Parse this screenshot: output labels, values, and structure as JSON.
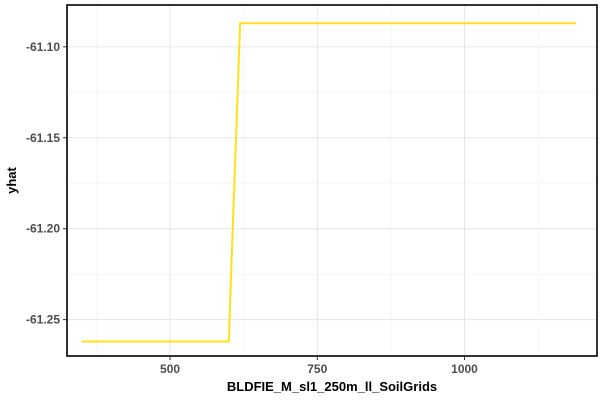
{
  "chart_data": {
    "type": "line",
    "xlabel": "BLDFIE_M_sl1_250m_ll_SoilGrids",
    "ylabel": "yhat",
    "xlim": [
      325,
      1225
    ],
    "ylim": [
      -61.27,
      -61.077
    ],
    "x_ticks": [
      500,
      750,
      1000
    ],
    "x_tick_labels": [
      "500",
      "750",
      "1000"
    ],
    "y_ticks": [
      -61.25,
      -61.2,
      -61.15,
      -61.1
    ],
    "y_tick_labels": [
      "-61.25",
      "-61.20",
      "-61.15",
      "-61.10"
    ],
    "grid": true,
    "legend": "none",
    "series": [
      {
        "color": "#FFE11A",
        "x": [
          350,
          600,
          602,
          617,
          619,
          1190
        ],
        "y": [
          -61.262,
          -61.262,
          -61.24,
          -61.105,
          -61.087,
          -61.087
        ]
      }
    ]
  }
}
